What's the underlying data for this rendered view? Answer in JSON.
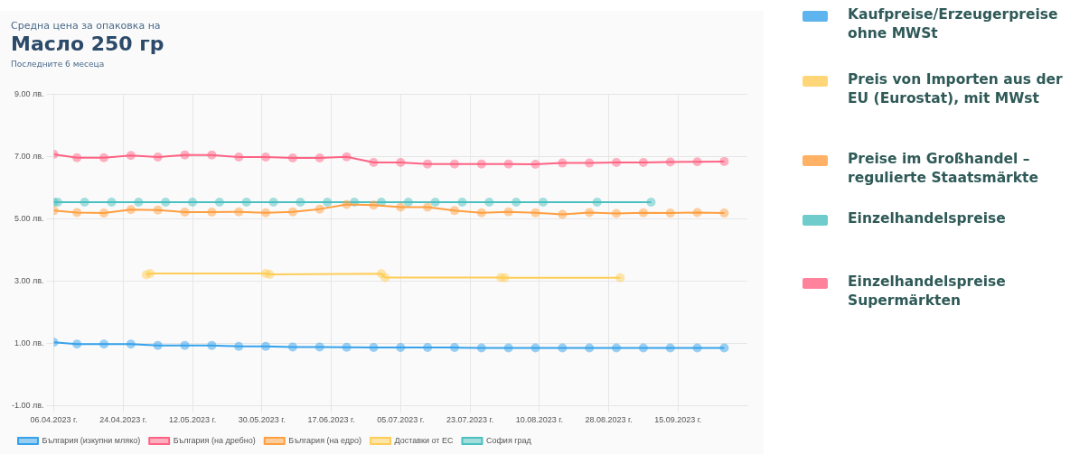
{
  "chart_data": {
    "type": "line",
    "title": "Масло 250 гр",
    "subtitle": "Последните 6 месеца",
    "annotations": [
      "Средна цена за опаковка на",
      "Kaufpreise/Erzeugerpreise ohne MWSt",
      "Preis von Importen aus der EU (Eurostat), mit MWst",
      "Preise im Großhandel – regulierte Staatsmärkte",
      "Einzelhandelspreise",
      "Einzelhandelspreise Supermärkten"
    ],
    "x": [
      "2023-04-06",
      "2023-04-12",
      "2023-04-19",
      "2023-04-26",
      "2023-05-03",
      "2023-05-10",
      "2023-05-17",
      "2023-05-24",
      "2023-05-31",
      "2023-06-07",
      "2023-06-14",
      "2023-06-21",
      "2023-06-28",
      "2023-07-05",
      "2023-07-12",
      "2023-07-19",
      "2023-07-26",
      "2023-08-02",
      "2023-08-09",
      "2023-08-16",
      "2023-08-23",
      "2023-08-30",
      "2023-09-06",
      "2023-09-13",
      "2023-09-20",
      "2023-09-27"
    ],
    "series": [
      {
        "name": "България (изкупни мляко)",
        "color": "#36a2eb",
        "values": [
          1.03,
          0.97,
          0.97,
          0.97,
          0.93,
          0.93,
          0.93,
          0.9,
          0.9,
          0.88,
          0.88,
          0.87,
          0.86,
          0.86,
          0.86,
          0.86,
          0.85,
          0.85,
          0.85,
          0.85,
          0.85,
          0.85,
          0.85,
          0.85,
          0.85,
          0.85
        ]
      },
      {
        "name": "България (на дребно)",
        "color": "#ff6384",
        "values": [
          7.07,
          6.96,
          6.96,
          7.03,
          6.98,
          7.05,
          7.05,
          6.98,
          6.98,
          6.95,
          6.95,
          6.99,
          6.81,
          6.81,
          6.76,
          6.76,
          6.76,
          6.76,
          6.75,
          6.79,
          6.79,
          6.81,
          6.81,
          6.82,
          6.83,
          6.84
        ]
      },
      {
        "name": "България (на едро)",
        "color": "#ff9f40",
        "values": [
          5.26,
          5.2,
          5.18,
          5.29,
          5.28,
          5.21,
          5.21,
          5.22,
          5.19,
          5.22,
          5.31,
          5.46,
          5.44,
          5.37,
          5.37,
          5.26,
          5.19,
          5.22,
          5.19,
          5.14,
          5.2,
          5.17,
          5.19,
          5.18,
          5.2,
          5.18
        ]
      },
      {
        "name": "Доставки от ЕС",
        "color": "#ffcd56",
        "x": [
          "2023-04-30",
          "2023-05-01",
          "2023-05-31",
          "2023-06-01",
          "2023-06-30",
          "2023-07-01",
          "2023-07-31",
          "2023-08-01",
          "2023-08-31"
        ],
        "values": [
          3.2,
          3.24,
          3.24,
          3.21,
          3.23,
          3.11,
          3.11,
          3.1,
          3.1
        ]
      },
      {
        "name": "София град",
        "color": "#4bc0c0",
        "x": [
          "2023-04-06",
          "2023-04-07",
          "2023-04-14",
          "2023-04-21",
          "2023-04-28",
          "2023-05-05",
          "2023-05-12",
          "2023-05-19",
          "2023-05-26",
          "2023-06-02",
          "2023-06-09",
          "2023-06-16",
          "2023-06-23",
          "2023-06-30",
          "2023-07-07",
          "2023-07-14",
          "2023-07-21",
          "2023-07-28",
          "2023-08-04",
          "2023-08-11",
          "2023-08-25",
          "2023-09-08"
        ],
        "values": [
          5.53,
          5.53,
          5.53,
          5.53,
          5.53,
          5.53,
          5.53,
          5.53,
          5.53,
          5.53,
          5.53,
          5.53,
          5.53,
          5.53,
          5.53,
          5.53,
          5.53,
          5.53,
          5.53,
          5.53,
          5.53,
          5.53
        ]
      }
    ],
    "xlim": [
      "2023-04-06",
      "2023-10-03"
    ],
    "xticks": [
      {
        "value": "2023-04-06",
        "label": "06.04.2023 г."
      },
      {
        "value": "2023-04-24",
        "label": "24.04.2023 г."
      },
      {
        "value": "2023-05-12",
        "label": "12.05.2023 г."
      },
      {
        "value": "2023-05-30",
        "label": "30.05.2023 г."
      },
      {
        "value": "2023-06-17",
        "label": "17.06.2023 г."
      },
      {
        "value": "2023-07-05",
        "label": "05.07.2023 г."
      },
      {
        "value": "2023-07-23",
        "label": "23.07.2023 г."
      },
      {
        "value": "2023-08-10",
        "label": "10.08.2023 г."
      },
      {
        "value": "2023-08-28",
        "label": "28.08.2023 г."
      },
      {
        "value": "2023-09-15",
        "label": "15.09.2023 г."
      }
    ],
    "ylim": [
      -1,
      9
    ],
    "yticks": [
      {
        "value": -1,
        "label": "-1.00 лв."
      },
      {
        "value": 1,
        "label": "1.00 лв."
      },
      {
        "value": 3,
        "label": "3.00 лв."
      },
      {
        "value": 5,
        "label": "5.00 лв."
      },
      {
        "value": 7,
        "label": "7.00 лв."
      },
      {
        "value": 9,
        "label": "9.00 лв."
      }
    ],
    "grid": true,
    "legend": "bottom",
    "marker": "circle",
    "line_style": "solid"
  }
}
